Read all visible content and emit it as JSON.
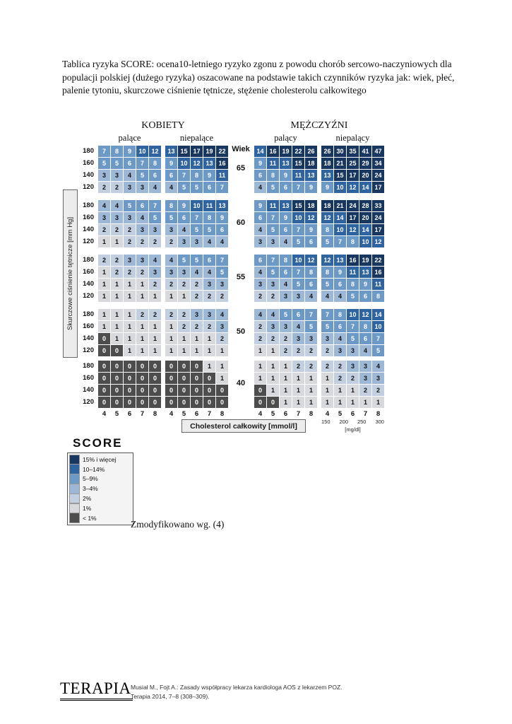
{
  "intro": "Tablica ryzyka SCORE: ocena10-letniego ryzyko zgonu z powodu chorób sercowo-naczyniowych dla populacji polskiej (dużego ryzyka) oszacowane na podstawie takich czynników ryzyka jak: wiek, płeć, palenie tytoniu, skurczowe ciśnienie tętnicze, stężenie cholesterolu całkowitego",
  "note": "Zmodyfikowano wg. (4)",
  "legend": {
    "title": "SCORE"
  },
  "footer": {
    "logo": "TERAPIA",
    "line1": "Musiał M., Fojt A.: Zasady współpracy lekarza kardiologa AOS z lekarzem POZ.",
    "line2": "Terapia 2014, 7–8 (308–309)."
  },
  "chart_data": {
    "type": "heatmap",
    "title": "Tablica ryzyka SCORE",
    "group_titles": [
      "KOBIETY",
      "MĘŻCZYŹNI"
    ],
    "age_label": "Wiek",
    "ages": [
      "65",
      "60",
      "55",
      "50",
      "40"
    ],
    "y_axis": {
      "label": "Skurczowe ciśnienie tętnicze [mm Hg]",
      "ticks": [
        "180",
        "160",
        "140",
        "120"
      ]
    },
    "x_axis": {
      "label": "Cholesterol całkowity [mmol/l]",
      "ticks": [
        "4",
        "5",
        "6",
        "7",
        "8"
      ],
      "secondary": {
        "label": "[mg/dl]",
        "ticks": [
          "150",
          "200",
          "250",
          "300"
        ]
      }
    },
    "legend_bands": [
      {
        "label": "15% i więcej",
        "min": 15,
        "color": "#173760",
        "text": "#ffffff"
      },
      {
        "label": "10–14%",
        "min": 10,
        "color": "#2f64a1",
        "text": "#ffffff"
      },
      {
        "label": "5–9%",
        "min": 5,
        "color": "#6d99c6",
        "text": "#ffffff"
      },
      {
        "label": "3–4%",
        "min": 3,
        "color": "#9db8d6",
        "text": "#111111"
      },
      {
        "label": "2%",
        "min": 2,
        "color": "#c2cfe0",
        "text": "#111111"
      },
      {
        "label": "1%",
        "min": 1,
        "color": "#d7d9dc",
        "text": "#111111"
      },
      {
        "label": "< 1%",
        "min": 0,
        "color": "#4d4d4d",
        "text": "#ffffff"
      }
    ],
    "columns": [
      {
        "group": "KOBIETY",
        "label": "palące",
        "ages": [
          [
            [
              7,
              8,
              9,
              10,
              12
            ],
            [
              5,
              5,
              6,
              7,
              8
            ],
            [
              3,
              3,
              4,
              5,
              6
            ],
            [
              2,
              2,
              3,
              3,
              4
            ]
          ],
          [
            [
              4,
              4,
              5,
              6,
              7
            ],
            [
              3,
              3,
              3,
              4,
              5
            ],
            [
              2,
              2,
              2,
              3,
              3
            ],
            [
              1,
              1,
              2,
              2,
              2
            ]
          ],
          [
            [
              2,
              2,
              3,
              3,
              4
            ],
            [
              1,
              2,
              2,
              2,
              3
            ],
            [
              1,
              1,
              1,
              1,
              2
            ],
            [
              1,
              1,
              1,
              1,
              1
            ]
          ],
          [
            [
              1,
              1,
              1,
              2,
              2
            ],
            [
              1,
              1,
              1,
              1,
              1
            ],
            [
              0,
              1,
              1,
              1,
              1
            ],
            [
              0,
              0,
              1,
              1,
              1
            ]
          ],
          [
            [
              0,
              0,
              0,
              0,
              0
            ],
            [
              0,
              0,
              0,
              0,
              0
            ],
            [
              0,
              0,
              0,
              0,
              0
            ],
            [
              0,
              0,
              0,
              0,
              0
            ]
          ]
        ]
      },
      {
        "group": "KOBIETY",
        "label": "niepalące",
        "ages": [
          [
            [
              13,
              15,
              17,
              19,
              22
            ],
            [
              9,
              10,
              12,
              13,
              16
            ],
            [
              6,
              7,
              8,
              9,
              11
            ],
            [
              4,
              5,
              5,
              6,
              7
            ]
          ],
          [
            [
              8,
              9,
              10,
              11,
              13
            ],
            [
              5,
              6,
              7,
              8,
              9
            ],
            [
              3,
              4,
              5,
              5,
              6
            ],
            [
              2,
              3,
              3,
              4,
              4
            ]
          ],
          [
            [
              4,
              5,
              5,
              6,
              7
            ],
            [
              3,
              3,
              4,
              4,
              5
            ],
            [
              2,
              2,
              2,
              3,
              3
            ],
            [
              1,
              1,
              2,
              2,
              2
            ]
          ],
          [
            [
              2,
              2,
              3,
              3,
              4
            ],
            [
              1,
              2,
              2,
              2,
              3
            ],
            [
              1,
              1,
              1,
              1,
              2
            ],
            [
              1,
              1,
              1,
              1,
              1
            ]
          ],
          [
            [
              0,
              0,
              0,
              1,
              1
            ],
            [
              0,
              0,
              0,
              0,
              1
            ],
            [
              0,
              0,
              0,
              0,
              0
            ],
            [
              0,
              0,
              0,
              0,
              0
            ]
          ]
        ]
      },
      {
        "group": "MĘŻCZYŹNI",
        "label": "palący",
        "ages": [
          [
            [
              14,
              16,
              19,
              22,
              26
            ],
            [
              9,
              11,
              13,
              15,
              18
            ],
            [
              6,
              8,
              9,
              11,
              13
            ],
            [
              4,
              5,
              6,
              7,
              9
            ]
          ],
          [
            [
              9,
              11,
              13,
              15,
              18
            ],
            [
              6,
              7,
              9,
              10,
              12
            ],
            [
              4,
              5,
              6,
              7,
              9
            ],
            [
              3,
              3,
              4,
              5,
              6
            ]
          ],
          [
            [
              6,
              7,
              8,
              10,
              12
            ],
            [
              4,
              5,
              6,
              7,
              8
            ],
            [
              3,
              3,
              4,
              5,
              6
            ],
            [
              2,
              2,
              3,
              3,
              4
            ]
          ],
          [
            [
              4,
              4,
              5,
              6,
              7
            ],
            [
              2,
              3,
              3,
              4,
              5
            ],
            [
              2,
              2,
              2,
              3,
              3
            ],
            [
              1,
              1,
              2,
              2,
              2
            ]
          ],
          [
            [
              1,
              1,
              1,
              2,
              2
            ],
            [
              1,
              1,
              1,
              1,
              1
            ],
            [
              0,
              1,
              1,
              1,
              1
            ],
            [
              0,
              0,
              1,
              1,
              1
            ]
          ]
        ]
      },
      {
        "group": "MĘŻCZYŹNI",
        "label": "niepalący",
        "ages": [
          [
            [
              26,
              30,
              35,
              41,
              47
            ],
            [
              18,
              21,
              25,
              29,
              34
            ],
            [
              13,
              15,
              17,
              20,
              24
            ],
            [
              9,
              10,
              12,
              14,
              17
            ]
          ],
          [
            [
              18,
              21,
              24,
              28,
              33
            ],
            [
              12,
              14,
              17,
              20,
              24
            ],
            [
              8,
              10,
              12,
              14,
              17
            ],
            [
              5,
              7,
              8,
              10,
              12
            ]
          ],
          [
            [
              12,
              13,
              16,
              19,
              22
            ],
            [
              8,
              9,
              11,
              13,
              16
            ],
            [
              5,
              6,
              8,
              9,
              11
            ],
            [
              4,
              4,
              5,
              6,
              8
            ]
          ],
          [
            [
              7,
              8,
              10,
              12,
              14
            ],
            [
              5,
              6,
              7,
              8,
              10
            ],
            [
              3,
              4,
              5,
              6,
              7
            ],
            [
              2,
              3,
              3,
              4,
              5
            ]
          ],
          [
            [
              2,
              2,
              3,
              3,
              4
            ],
            [
              1,
              2,
              2,
              3,
              3
            ],
            [
              1,
              1,
              1,
              2,
              2
            ],
            [
              1,
              1,
              1,
              1,
              1
            ]
          ]
        ]
      }
    ]
  }
}
